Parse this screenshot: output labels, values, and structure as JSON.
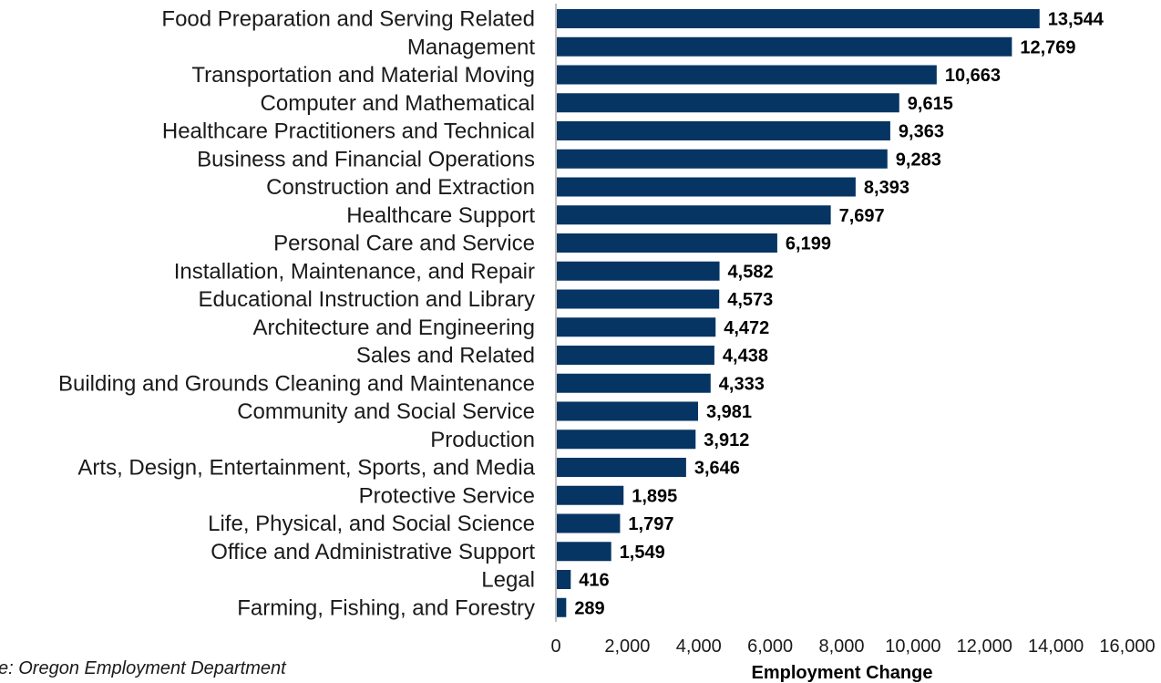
{
  "chart_data": {
    "type": "bar",
    "orientation": "horizontal",
    "categories": [
      "Food Preparation and Serving Related",
      "Management",
      "Transportation and Material Moving",
      "Computer and Mathematical",
      "Healthcare Practitioners and Technical",
      "Business and Financial Operations",
      "Construction and Extraction",
      "Healthcare Support",
      "Personal Care and Service",
      "Installation, Maintenance, and Repair",
      "Educational Instruction and Library",
      "Architecture and Engineering",
      "Sales and Related",
      "Building and Grounds Cleaning and Maintenance",
      "Community and Social Service",
      "Production",
      "Arts, Design, Entertainment, Sports, and Media",
      "Protective Service",
      "Life, Physical, and Social Science",
      "Office and Administrative Support",
      "Legal",
      "Farming, Fishing, and Forestry"
    ],
    "values": [
      13544,
      12769,
      10663,
      9615,
      9363,
      9283,
      8393,
      7697,
      6199,
      4582,
      4573,
      4472,
      4438,
      4333,
      3981,
      3912,
      3646,
      1895,
      1797,
      1549,
      416,
      289
    ],
    "value_labels": [
      "13,544",
      "12,769",
      "10,663",
      "9,615",
      "9,363",
      "9,283",
      "8,393",
      "7,697",
      "6,199",
      "4,582",
      "4,573",
      "4,472",
      "4,438",
      "4,333",
      "3,981",
      "3,912",
      "3,646",
      "1,895",
      "1,797",
      "1,549",
      "416",
      "289"
    ],
    "xlabel": "Employment Change",
    "ylabel": "",
    "xlim": [
      0,
      16000
    ],
    "x_ticks": [
      "0",
      "2,000",
      "4,000",
      "6,000",
      "8,000",
      "10,000",
      "12,000",
      "14,000",
      "16,000"
    ],
    "grid": false,
    "bar_color": "#063563"
  },
  "source_note": "e: Oregon Employment Department"
}
